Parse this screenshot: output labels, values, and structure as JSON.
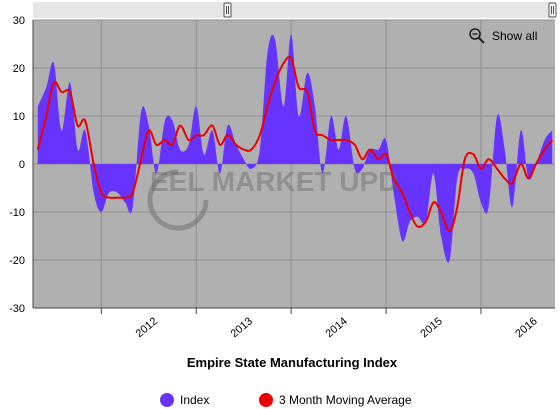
{
  "controls": {
    "show_all_label": "Show all"
  },
  "watermark": "EEL MARKET UPD",
  "chart_data": {
    "type": "area",
    "title": "Empire State Manufacturing Index",
    "xlabel": "",
    "ylabel": "",
    "ylim": [
      -30,
      30
    ],
    "yticks": [
      "30",
      "20",
      "10",
      "0",
      "-10",
      "-20",
      "-30"
    ],
    "xticks": [
      "2012",
      "2013",
      "2014",
      "2015",
      "2016"
    ],
    "grid": true,
    "legend_position": "bottom",
    "colors": {
      "index": "#6633ff",
      "moving_average": "#ee0000",
      "plot_background": "#b0b0b0",
      "scrollbar": "#e6e6e6"
    },
    "series": [
      {
        "name": "Index",
        "style": "area",
        "x": [
          2011.33,
          2011.42,
          2011.5,
          2011.58,
          2011.67,
          2011.75,
          2011.83,
          2011.92,
          2012.0,
          2012.08,
          2012.17,
          2012.25,
          2012.33,
          2012.42,
          2012.5,
          2012.58,
          2012.67,
          2012.75,
          2012.83,
          2012.92,
          2013.0,
          2013.08,
          2013.17,
          2013.25,
          2013.33,
          2013.42,
          2013.5,
          2013.58,
          2013.67,
          2013.75,
          2013.83,
          2013.92,
          2014.0,
          2014.08,
          2014.17,
          2014.25,
          2014.33,
          2014.42,
          2014.5,
          2014.58,
          2014.67,
          2014.75,
          2014.83,
          2014.92,
          2015.0,
          2015.08,
          2015.17,
          2015.25,
          2015.33,
          2015.42,
          2015.5,
          2015.58,
          2015.67,
          2015.75,
          2015.83,
          2015.92,
          2016.0,
          2016.08,
          2016.17,
          2016.25,
          2016.33,
          2016.42,
          2016.5,
          2016.58,
          2016.67,
          2016.75
        ],
        "values": [
          12,
          16,
          21,
          7,
          17,
          3,
          7,
          -6,
          -10,
          -6,
          -6,
          -8,
          -9,
          11,
          8,
          -2,
          9,
          9,
          3,
          4,
          12,
          2,
          7,
          -2,
          8,
          4,
          1,
          -1,
          3,
          23,
          26,
          12,
          27,
          10,
          19,
          12,
          -2,
          10,
          3,
          10,
          -1,
          -1,
          3,
          3,
          5,
          -6,
          -16,
          -12,
          -11,
          -12,
          -2,
          -15,
          -20,
          -3,
          -1,
          -2,
          -8,
          -9,
          10,
          3,
          -9,
          7,
          -3,
          0,
          5,
          7
        ]
      },
      {
        "name": "3 Month Moving Average",
        "style": "line",
        "x": [
          2011.33,
          2011.42,
          2011.5,
          2011.58,
          2011.67,
          2011.75,
          2011.83,
          2011.92,
          2012.0,
          2012.08,
          2012.17,
          2012.25,
          2012.33,
          2012.42,
          2012.5,
          2012.58,
          2012.67,
          2012.75,
          2012.83,
          2012.92,
          2013.0,
          2013.08,
          2013.17,
          2013.25,
          2013.33,
          2013.42,
          2013.5,
          2013.58,
          2013.67,
          2013.75,
          2013.83,
          2013.92,
          2014.0,
          2014.08,
          2014.17,
          2014.25,
          2014.33,
          2014.42,
          2014.5,
          2014.58,
          2014.67,
          2014.75,
          2014.83,
          2014.92,
          2015.0,
          2015.08,
          2015.17,
          2015.25,
          2015.33,
          2015.42,
          2015.5,
          2015.58,
          2015.67,
          2015.75,
          2015.83,
          2015.92,
          2016.0,
          2016.08,
          2016.17,
          2016.25,
          2016.33,
          2016.42,
          2016.5,
          2016.58,
          2016.67,
          2016.75
        ],
        "values": [
          3,
          10,
          17,
          15,
          15,
          8,
          9,
          0,
          -6,
          -7,
          -7,
          -7,
          -6,
          1,
          7,
          4,
          5,
          4,
          8,
          5,
          6,
          6,
          8,
          4,
          6,
          4,
          3,
          3,
          6,
          12,
          17,
          21,
          22,
          16,
          15,
          7,
          6,
          5,
          5,
          5,
          4,
          1,
          3,
          1,
          2,
          -3,
          -6,
          -10,
          -13,
          -12,
          -8,
          -10,
          -14,
          -9,
          1,
          2,
          -1,
          1,
          -1,
          -3,
          -4,
          0,
          -3,
          0,
          3,
          5
        ]
      }
    ]
  }
}
